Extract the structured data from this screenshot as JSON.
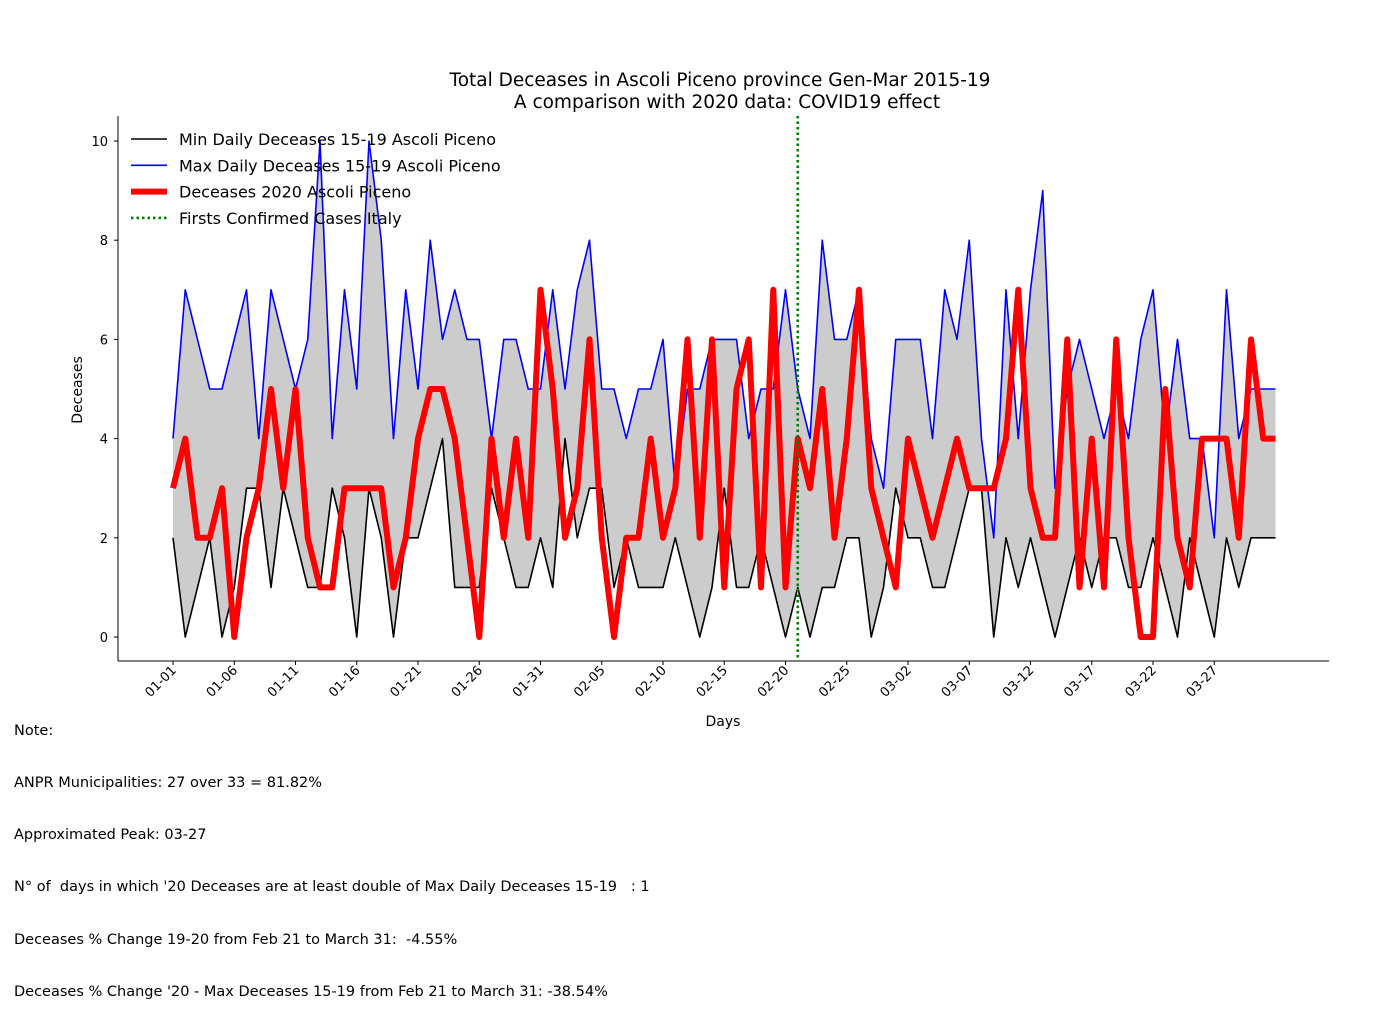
{
  "chart_data": {
    "type": "line",
    "title": "Total Deceases in Ascoli Piceno province Gen-Mar 2015-19",
    "subtitle": "A comparison with 2020 data: COVID19 effect",
    "xlabel": "Days",
    "ylabel": "Deceases",
    "ylim": [
      -0.5,
      10.5
    ],
    "yticks": [
      0,
      2,
      4,
      6,
      8,
      10
    ],
    "xtick_labels": [
      "01-01",
      "01-06",
      "01-11",
      "01-16",
      "01-21",
      "01-26",
      "01-31",
      "02-05",
      "02-10",
      "02-15",
      "02-20",
      "02-25",
      "03-02",
      "03-07",
      "03-12",
      "03-17",
      "03-22",
      "03-27"
    ],
    "xtick_step_days": 5,
    "n_days": 91,
    "grid": false,
    "legend_position": "top-left",
    "series": [
      {
        "name": "Min Daily Deceases 15-19 Ascoli Piceno",
        "color": "#000000",
        "style": "solid",
        "width": "thin",
        "values": [
          2,
          0,
          1,
          2,
          0,
          1,
          3,
          3,
          1,
          3,
          2,
          1,
          1,
          3,
          2,
          0,
          3,
          2,
          0,
          2,
          2,
          3,
          4,
          1,
          1,
          1,
          3,
          2,
          1,
          1,
          2,
          1,
          4,
          2,
          3,
          3,
          1,
          2,
          1,
          1,
          1,
          2,
          1,
          0,
          1,
          3,
          1,
          1,
          2,
          1,
          0,
          1,
          0,
          1,
          1,
          2,
          2,
          0,
          1,
          3,
          2,
          2,
          1,
          1,
          2,
          3,
          3,
          0,
          2,
          1,
          2,
          1,
          0,
          1,
          2,
          1,
          2,
          2,
          1,
          1,
          2,
          1,
          0,
          2,
          1,
          0,
          2,
          1,
          2,
          2,
          2
        ]
      },
      {
        "name": "Max Daily Deceases 15-19 Ascoli Piceno",
        "color": "#0000ff",
        "style": "solid",
        "width": "thin",
        "values": [
          4,
          7,
          6,
          5,
          5,
          6,
          7,
          4,
          7,
          6,
          5,
          6,
          10,
          4,
          7,
          5,
          10,
          8,
          4,
          7,
          5,
          8,
          6,
          7,
          6,
          6,
          4,
          6,
          6,
          5,
          5,
          7,
          5,
          7,
          8,
          5,
          5,
          4,
          5,
          5,
          6,
          3,
          5,
          5,
          6,
          6,
          6,
          4,
          5,
          5,
          7,
          5,
          4,
          8,
          6,
          6,
          7,
          4,
          3,
          6,
          6,
          6,
          4,
          7,
          6,
          8,
          4,
          2,
          7,
          4,
          7,
          9,
          3,
          5,
          6,
          5,
          4,
          5,
          4,
          6,
          7,
          4,
          6,
          4,
          4,
          2,
          7,
          4,
          5,
          5,
          5
        ]
      },
      {
        "name": "Deceases 2020 Ascoli Piceno",
        "color": "#ff0000",
        "style": "solid",
        "width": "thick",
        "values": [
          3,
          4,
          2,
          2,
          3,
          0,
          2,
          3,
          5,
          3,
          5,
          2,
          1,
          1,
          3,
          3,
          3,
          3,
          1,
          2,
          4,
          5,
          5,
          4,
          2,
          0,
          4,
          2,
          4,
          2,
          7,
          5,
          2,
          3,
          6,
          2,
          0,
          2,
          2,
          4,
          2,
          3,
          6,
          2,
          6,
          1,
          5,
          6,
          1,
          7,
          1,
          4,
          3,
          5,
          2,
          4,
          7,
          3,
          2,
          1,
          4,
          3,
          2,
          3,
          4,
          3,
          3,
          3,
          4,
          7,
          3,
          2,
          2,
          6,
          1,
          4,
          1,
          6,
          2,
          0,
          0,
          5,
          2,
          1,
          4,
          4,
          4,
          2,
          6,
          4,
          4
        ]
      }
    ],
    "vertical_marker": {
      "name": "Firsts Confirmed Cases Italy",
      "color": "#008000",
      "style": "dotted",
      "x_date": "02-21"
    },
    "fill_between": {
      "from": "Min Daily Deceases 15-19 Ascoli Piceno",
      "to": "Max Daily Deceases 15-19 Ascoli Piceno",
      "color": "#cccccc"
    }
  },
  "notes": [
    "Note:",
    "ANPR Municipalities: 27 over 33 = 81.82%",
    "Approximated Peak: 03-27",
    "N° of  days in which '20 Deceases are at least double of Max Daily Deceases 15-19   : 1",
    "Deceases % Change 19-20 from Feb 21 to March 31:  -4.55%",
    "Deceases % Change '20 - Max Deceases 15-19 from Feb 21 to March 31: -38.54%"
  ]
}
